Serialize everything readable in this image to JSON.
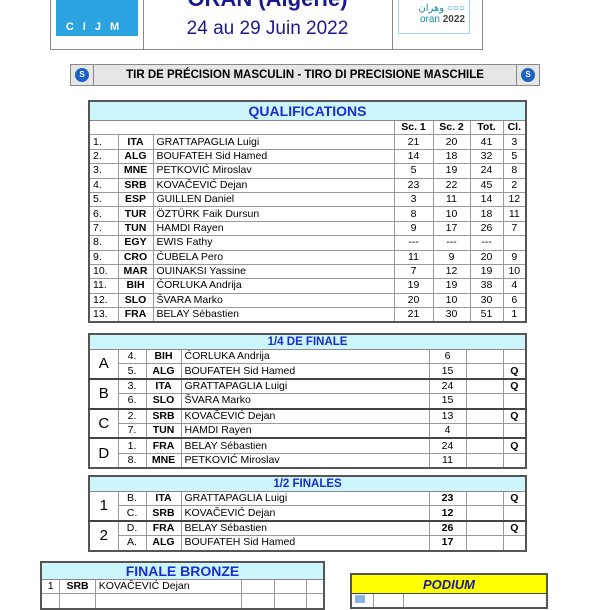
{
  "header": {
    "title": "ORAN (Algérie)",
    "dates": "24 au 29 Juin 2022",
    "logo_left": "CIJM",
    "logo_right_arabic": "وهران",
    "logo_right": "oran",
    "logo_right_year": "2022"
  },
  "event": {
    "title": "TIR DE PRÉCISION MASCULIN - TIRO DI PRECISIONE MASCHILE",
    "badge": "S"
  },
  "qualifications": {
    "title": "QUALIFICATIONS",
    "columns": [
      "Sc. 1",
      "Sc. 2",
      "Tot.",
      "Cl."
    ],
    "rows": [
      [
        "1.",
        "ITA",
        "GRATTAPAGLIA Luigi",
        "21",
        "20",
        "41",
        "3"
      ],
      [
        "2.",
        "ALG",
        "BOUFATEH Sid Hamed",
        "14",
        "18",
        "32",
        "5"
      ],
      [
        "3.",
        "MNE",
        "PETKOVIĆ Miroslav",
        "5",
        "19",
        "24",
        "8"
      ],
      [
        "4.",
        "SRB",
        "KOVAČEVIĆ Dejan",
        "23",
        "22",
        "45",
        "2"
      ],
      [
        "5.",
        "ESP",
        "GUILLEN Daniel",
        "3",
        "11",
        "14",
        "12"
      ],
      [
        "6.",
        "TUR",
        "ÖZTÜRK Faik Dursun",
        "8",
        "10",
        "18",
        "11"
      ],
      [
        "7.",
        "TUN",
        "HAMDI Rayen",
        "9",
        "17",
        "26",
        "7"
      ],
      [
        "8.",
        "EGY",
        "EWIS Fathy",
        "---",
        "---",
        "---",
        ""
      ],
      [
        "9.",
        "CRO",
        "ĆUBELA  Pero",
        "11",
        "9",
        "20",
        "9"
      ],
      [
        "10.",
        "MAR",
        "OUINAKSI Yassine",
        "7",
        "12",
        "19",
        "10"
      ],
      [
        "11.",
        "BIH",
        "ĆORLUKA Andrija",
        "19",
        "19",
        "38",
        "4"
      ],
      [
        "12.",
        "SLO",
        "ŠVARA Marko",
        "20",
        "10",
        "30",
        "6"
      ],
      [
        "13.",
        "FRA",
        "BELAY Sébastien",
        "21",
        "30",
        "51",
        "1"
      ]
    ]
  },
  "quarterfinals": {
    "title": "1/4 DE FINALE",
    "groups": [
      {
        "label": "A",
        "rows": [
          [
            "4.",
            "BIH",
            "ĆORLUKA Andrija",
            "6",
            ""
          ],
          [
            "5.",
            "ALG",
            "BOUFATEH Sid Hamed",
            "15",
            "Q"
          ]
        ]
      },
      {
        "label": "B",
        "rows": [
          [
            "3.",
            "ITA",
            "GRATTAPAGLIA Luigi",
            "24",
            "Q"
          ],
          [
            "6.",
            "SLO",
            "ŠVARA Marko",
            "15",
            ""
          ]
        ]
      },
      {
        "label": "C",
        "rows": [
          [
            "2.",
            "SRB",
            "KOVAČEVIĆ Dejan",
            "13",
            "Q"
          ],
          [
            "7.",
            "TUN",
            "HAMDI Rayen",
            "4",
            ""
          ]
        ]
      },
      {
        "label": "D",
        "rows": [
          [
            "1.",
            "FRA",
            "BELAY Sébastien",
            "24",
            "Q"
          ],
          [
            "8.",
            "MNE",
            "PETKOVIĆ Miroslav",
            "11",
            ""
          ]
        ]
      }
    ]
  },
  "semifinals": {
    "title": "1/2 FINALES",
    "groups": [
      {
        "label": "1",
        "rows": [
          [
            "B.",
            "ITA",
            "GRATTAPAGLIA Luigi",
            "23",
            "Q"
          ],
          [
            "C.",
            "SRB",
            "KOVAČEVIĆ Dejan",
            "12",
            ""
          ]
        ]
      },
      {
        "label": "2",
        "rows": [
          [
            "D.",
            "FRA",
            "BELAY Sébastien",
            "26",
            "Q"
          ],
          [
            "A.",
            "ALG",
            "BOUFATEH Sid Hamed",
            "17",
            ""
          ]
        ]
      }
    ]
  },
  "bronze": {
    "title": "FINALE BRONZE",
    "rows": [
      [
        "1",
        "SRB",
        "KOVAČEVIĆ Dejan"
      ]
    ]
  },
  "podium": {
    "title": "PODIUM"
  }
}
